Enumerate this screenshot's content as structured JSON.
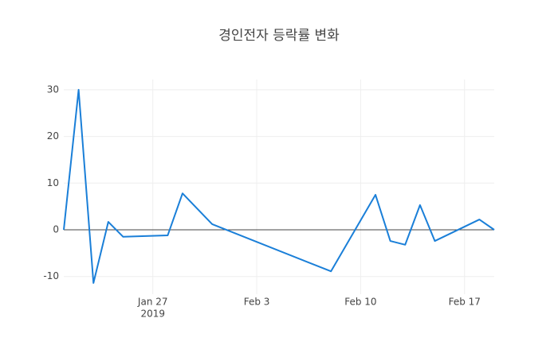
{
  "chart_data": {
    "type": "line",
    "title": "경인전자 등락률 변화",
    "x": [
      "2019-01-21",
      "2019-01-22",
      "2019-01-23",
      "2019-01-24",
      "2019-01-25",
      "2019-01-28",
      "2019-01-29",
      "2019-01-31",
      "2019-02-08",
      "2019-02-11",
      "2019-02-12",
      "2019-02-13",
      "2019-02-14",
      "2019-02-15",
      "2019-02-18",
      "2019-02-19"
    ],
    "series": [
      {
        "color": "#1a7fd8",
        "values": [
          0,
          30,
          -11.4,
          1.7,
          -1.5,
          -1.2,
          7.8,
          1.2,
          -8.9,
          7.5,
          -2.4,
          -3.2,
          5.3,
          -2.4,
          2.2,
          0
        ]
      }
    ],
    "xlim": [
      "2019-01-21",
      "2019-02-19"
    ],
    "xticks": [
      {
        "value": "2019-01-27",
        "label": "Jan 27"
      },
      {
        "value": "2019-02-03",
        "label": "Feb 3"
      },
      {
        "value": "2019-02-10",
        "label": "Feb 10"
      },
      {
        "value": "2019-02-17",
        "label": "Feb 17"
      }
    ],
    "xtick_year": "2019",
    "ylim": [
      -13.8,
      32.2
    ],
    "yticks": [
      -10,
      0,
      10,
      20,
      30
    ],
    "grid": true,
    "zeroline": true
  }
}
